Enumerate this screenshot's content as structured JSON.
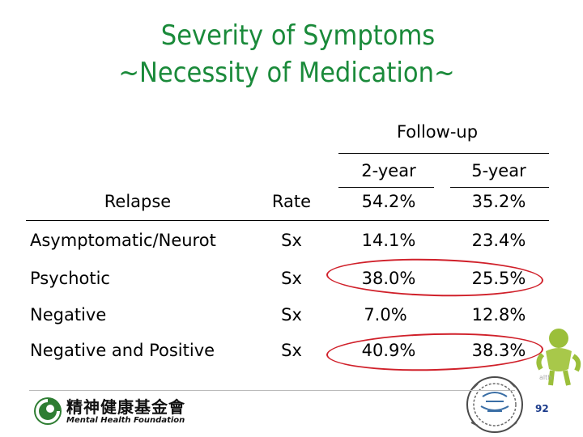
{
  "title": {
    "line1": "Severity of Symptoms",
    "line2": "~Necessity of Medication~"
  },
  "table": {
    "group_header": "Follow-up",
    "sub_headers": [
      "2-year",
      "5-year"
    ],
    "header_row": {
      "col1": "Relapse",
      "col2": "Rate",
      "v2": "54.2%",
      "v5": "35.2%"
    },
    "rows": [
      {
        "label": "Asymptomatic/Neurot",
        "col2": "Sx",
        "v2": "14.1%",
        "v5": "23.4%"
      },
      {
        "label": "Psychotic",
        "col2": "Sx",
        "v2": "38.0%",
        "v5": "25.5%"
      },
      {
        "label": "Negative",
        "col2": "Sx",
        "v2": "7.0%",
        "v5": "12.8%"
      },
      {
        "label": "Negative and Positive",
        "col2": "Sx",
        "v2": "40.9%",
        "v5": "38.3%"
      }
    ]
  },
  "footer": {
    "org_name_cn": "精神健康基金會",
    "org_name_en": "Mental Health Foundation",
    "page_number": "92",
    "ghost_text": "alth"
  },
  "colors": {
    "title": "#1a8a3a",
    "highlight_oval": "#d0202a",
    "logo": "#2e7d32",
    "page_number": "#1a3a8a"
  },
  "icons": {
    "logo": "foundation-logo-icon",
    "stamp": "round-stamp-icon",
    "mascot": "decorative-figure-icon"
  }
}
